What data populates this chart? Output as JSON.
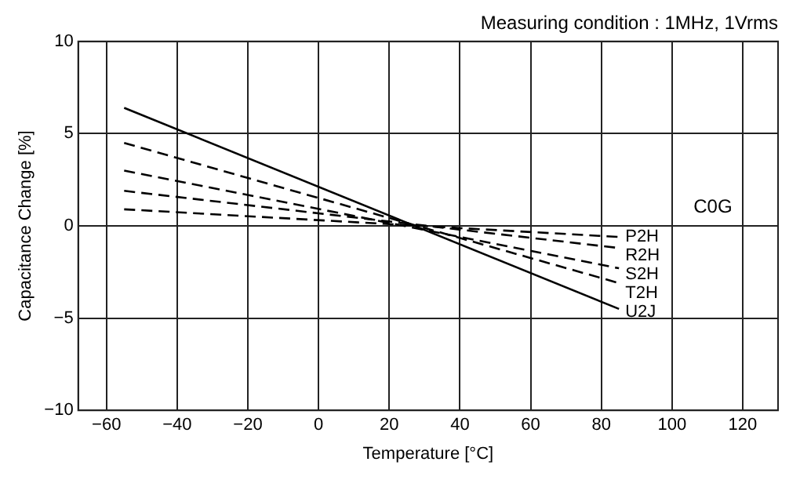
{
  "chart_data": {
    "type": "line",
    "title": "Measuring condition : 1MHz, 1Vrms",
    "xlabel": "Temperature [°C]",
    "ylabel": "Capacitance Change [%]",
    "x": [
      -55,
      85
    ],
    "series": [
      {
        "name": "P2H",
        "color": "#000000",
        "values": [
          0.9,
          -0.6
        ],
        "line_style": "dashed"
      },
      {
        "name": "R2H",
        "color": "#000000",
        "values": [
          1.9,
          -1.2
        ],
        "line_style": "dashed"
      },
      {
        "name": "S2H",
        "color": "#000000",
        "values": [
          3.0,
          -2.3
        ],
        "line_style": "dashed"
      },
      {
        "name": "T2H",
        "color": "#000000",
        "values": [
          4.5,
          -3.1
        ],
        "line_style": "dashed"
      },
      {
        "name": "U2J",
        "color": "#000000",
        "values": [
          6.4,
          -4.5
        ],
        "line_style": "solid"
      }
    ],
    "annotations": [
      "C0G"
    ],
    "xlim": [
      -68,
      130
    ],
    "xticks": [
      -60,
      -40,
      -20,
      0,
      20,
      40,
      60,
      80,
      100,
      120
    ],
    "ylim": [
      -10,
      10
    ],
    "yticks": [
      -10,
      -5,
      0,
      5,
      10
    ],
    "grid": true,
    "legend": false,
    "marker": "none"
  }
}
